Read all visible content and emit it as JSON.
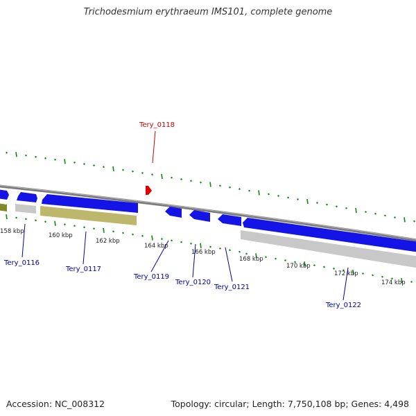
{
  "title": "Trichodesmium erythraeum IMS101, complete genome",
  "footer": {
    "accession": "Accession: NC_008312",
    "summary": "Topology: circular; Length: 7,750,108 bp; Genes: 4,498"
  },
  "colors": {
    "forward_gene": "#1414e6",
    "grey_feature": "#c8c8c8",
    "olive_feature": "#bdb76b",
    "highlight": "#e00000",
    "label_blue": "#000099",
    "label_red": "#cc0000",
    "tick": "#0a8a0a"
  },
  "ticks": [
    {
      "label": "158 kbp"
    },
    {
      "label": "160 kbp"
    },
    {
      "label": "162 kbp"
    },
    {
      "label": "164 kbp"
    },
    {
      "label": "166 kbp"
    },
    {
      "label": "168 kbp"
    },
    {
      "label": "170 kbp"
    },
    {
      "label": "172 kbp"
    },
    {
      "label": "174 kbp"
    }
  ],
  "gene_labels": [
    {
      "name": "Tery_0116"
    },
    {
      "name": "Tery_0117"
    },
    {
      "name": "Tery_0118"
    },
    {
      "name": "Tery_0119"
    },
    {
      "name": "Tery_0120"
    },
    {
      "name": "Tery_0121"
    },
    {
      "name": "Tery_0122"
    }
  ]
}
